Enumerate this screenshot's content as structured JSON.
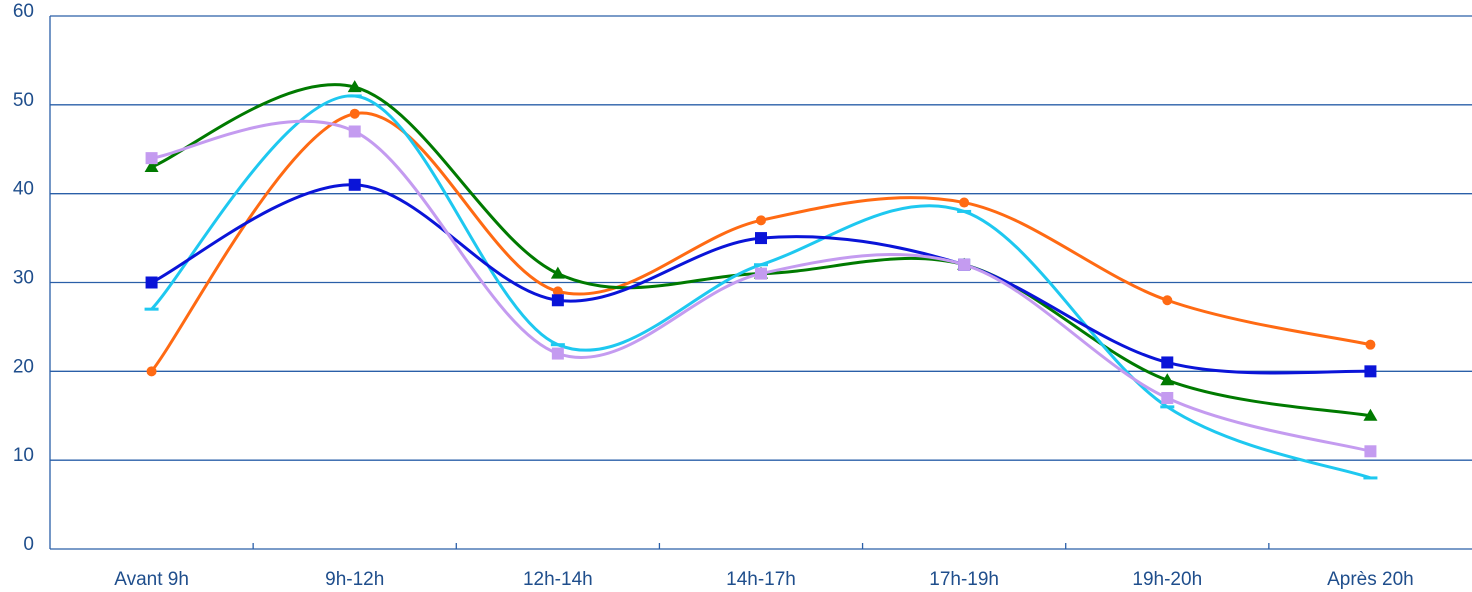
{
  "chart_data": {
    "type": "line",
    "categories": [
      "Avant 9h",
      "9h-12h",
      "12h-14h",
      "14h-17h",
      "17h-19h",
      "19h-20h",
      "Après 20h"
    ],
    "series": [
      {
        "color": "#ff6a13",
        "marker": "circle",
        "values": [
          20,
          49,
          29,
          37,
          39,
          28,
          23
        ]
      },
      {
        "color": "#007a00",
        "marker": "triangle",
        "values": [
          43,
          52,
          31,
          31,
          32,
          19,
          15
        ]
      },
      {
        "color": "#1ec8f0",
        "marker": "dash",
        "values": [
          27,
          51,
          23,
          32,
          38,
          16,
          8
        ]
      },
      {
        "color": "#0a14d8",
        "marker": "square",
        "values": [
          30,
          41,
          28,
          35,
          32,
          21,
          20
        ]
      },
      {
        "color": "#c49bf0",
        "marker": "square",
        "values": [
          44,
          47,
          22,
          31,
          32,
          17,
          11
        ]
      }
    ],
    "ylim": [
      0,
      60
    ],
    "yticks": [
      0,
      10,
      20,
      30,
      40,
      50,
      60
    ],
    "grid": true,
    "smooth": true
  }
}
